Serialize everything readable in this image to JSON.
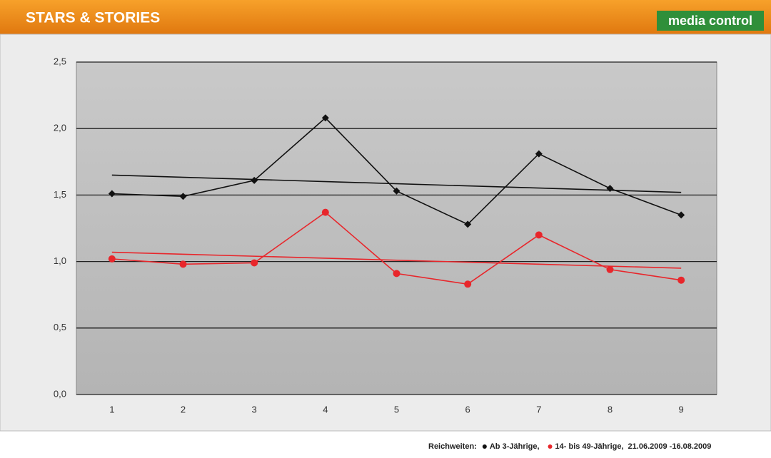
{
  "chart_data": {
    "type": "line",
    "title": "STARS & STORIES",
    "logo": "media control",
    "legend_prefix": "Reichweiten:",
    "date_range": "21.06.2009 -16.08.2009",
    "categories": [
      "1",
      "2",
      "3",
      "4",
      "5",
      "6",
      "7",
      "8",
      "9"
    ],
    "series": [
      {
        "name": "Ab 3-Jährige,",
        "color": "#111111",
        "marker": "diamond",
        "values": [
          1.51,
          1.49,
          1.61,
          2.08,
          1.53,
          1.28,
          1.81,
          1.55,
          1.35
        ],
        "trend": [
          1.65,
          1.52
        ]
      },
      {
        "name": "14- bis 49-Jährige,",
        "color": "#e8262b",
        "marker": "circle",
        "values": [
          1.02,
          0.98,
          0.99,
          1.37,
          0.91,
          0.83,
          1.2,
          0.94,
          0.86
        ],
        "trend": [
          1.07,
          0.95
        ]
      }
    ],
    "ylim": [
      0,
      2.5
    ],
    "yticks": [
      {
        "value": 0,
        "label": "0,0"
      },
      {
        "value": 0.5,
        "label": "0,5"
      },
      {
        "value": 1,
        "label": "1,0"
      },
      {
        "value": 1.5,
        "label": "1,5"
      },
      {
        "value": 2,
        "label": "2,0"
      },
      {
        "value": 2.5,
        "label": "2,5"
      }
    ],
    "grid": true
  }
}
